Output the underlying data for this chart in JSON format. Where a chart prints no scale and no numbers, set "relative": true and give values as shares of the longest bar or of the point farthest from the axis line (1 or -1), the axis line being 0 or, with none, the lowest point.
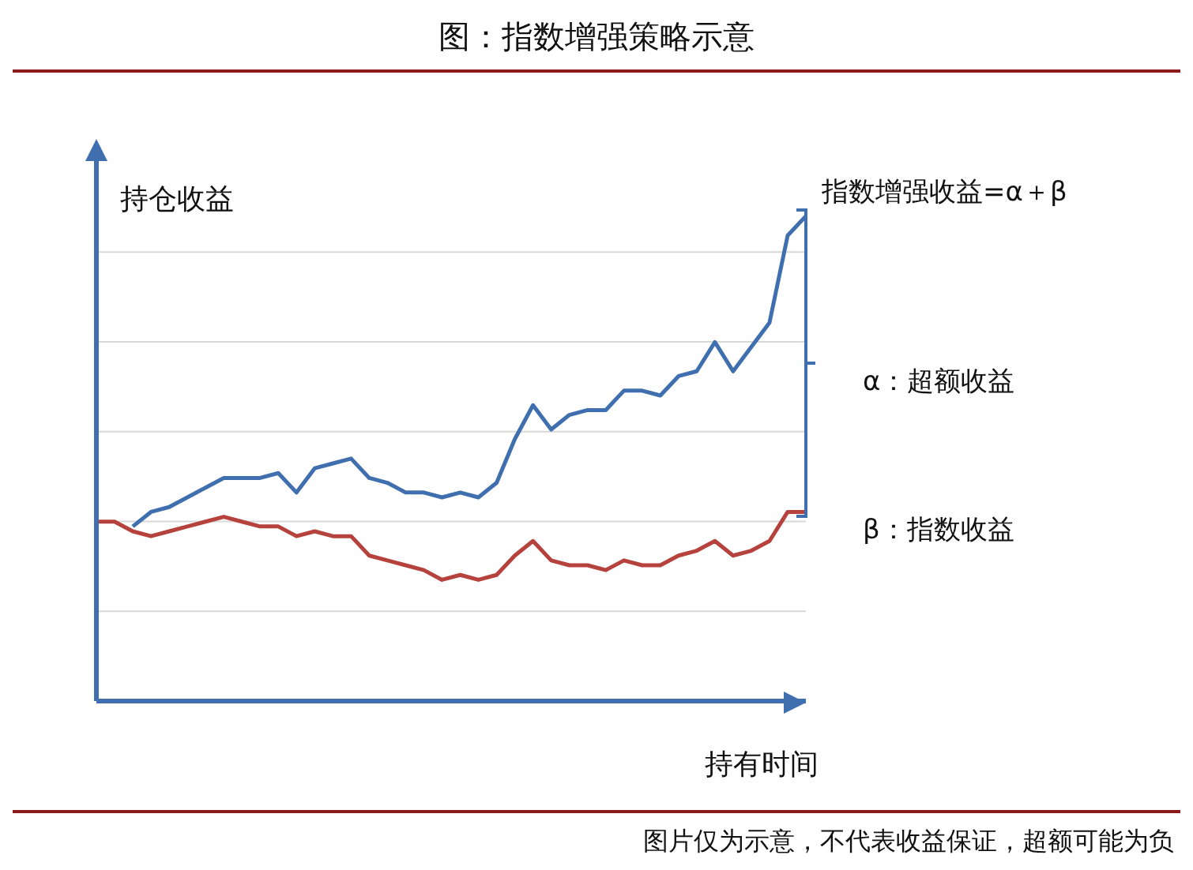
{
  "chart_data": {
    "type": "line",
    "title": "图：指数增强策略示意",
    "ylabel": "持仓收益",
    "xlabel": "持有时间",
    "relative": true,
    "grid": "y",
    "tick_labels": false,
    "marker": "none",
    "line_style": "solid",
    "categories": [
      null,
      null,
      null,
      null,
      null,
      null,
      null,
      null,
      null,
      null,
      null,
      null,
      null,
      null,
      null,
      null,
      null,
      null,
      null,
      null,
      null,
      null,
      null,
      null,
      null,
      null,
      null,
      null,
      null,
      null,
      null,
      null,
      null,
      null,
      null,
      null,
      null,
      null,
      null,
      null
    ],
    "series": [
      {
        "color": "#3f6fae",
        "values": [
          null,
          null,
          0.36,
          0.39,
          0.4,
          0.42,
          0.44,
          0.46,
          0.46,
          0.46,
          0.47,
          0.43,
          0.48,
          0.49,
          0.5,
          0.46,
          0.45,
          0.43,
          0.43,
          0.42,
          0.43,
          0.42,
          0.45,
          0.54,
          0.61,
          0.56,
          0.59,
          0.6,
          0.6,
          0.64,
          0.64,
          0.63,
          0.67,
          0.68,
          0.74,
          0.68,
          0.73,
          0.78,
          0.96,
          1
        ]
      },
      {
        "color": "#b5423c",
        "values": [
          0.37,
          0.37,
          0.35,
          0.34,
          0.35,
          0.36,
          0.37,
          0.38,
          0.37,
          0.36,
          0.36,
          0.34,
          0.35,
          0.34,
          0.34,
          0.3,
          0.29,
          0.28,
          0.27,
          0.25,
          0.26,
          0.25,
          0.26,
          0.3,
          0.33,
          0.29,
          0.28,
          0.28,
          0.27,
          0.29,
          0.28,
          0.28,
          0.3,
          0.31,
          0.33,
          0.3,
          0.31,
          0.33,
          0.39,
          0.39
        ]
      }
    ],
    "annotations": [
      "指数增强收益=α＋β",
      "α：超额收益",
      "β：指数收益",
      "图片仅为示意，不代表收益保证，超额可能为负"
    ]
  }
}
